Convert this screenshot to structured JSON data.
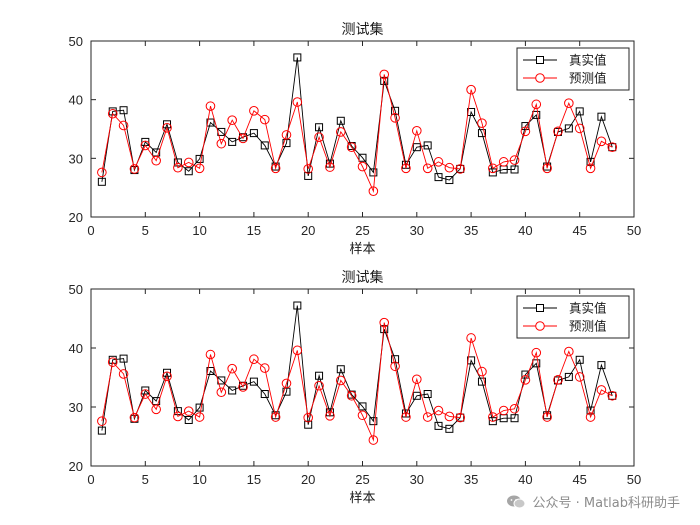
{
  "chart_data": [
    {
      "type": "line",
      "title": "测试集",
      "xlabel": "样本",
      "ylabel": "",
      "xlim": [
        0,
        50
      ],
      "ylim": [
        20,
        50
      ],
      "xticks": [
        0,
        5,
        10,
        15,
        20,
        25,
        30,
        35,
        40,
        45,
        50
      ],
      "yticks": [
        20,
        30,
        40,
        50
      ],
      "legend_position": "top-right",
      "x": [
        1,
        2,
        3,
        4,
        5,
        6,
        7,
        8,
        9,
        10,
        11,
        12,
        13,
        14,
        15,
        16,
        17,
        18,
        19,
        20,
        21,
        22,
        23,
        24,
        25,
        26,
        27,
        28,
        29,
        30,
        31,
        32,
        33,
        34,
        35,
        36,
        37,
        38,
        39,
        40,
        41,
        42,
        43,
        44,
        45,
        46,
        47,
        48
      ],
      "series": [
        {
          "name": "真实值",
          "color": "#000000",
          "marker": "square",
          "values": [
            26,
            38,
            38.2,
            28,
            32.8,
            31,
            35.8,
            29.3,
            27.8,
            29.9,
            36.1,
            34.5,
            32.8,
            33.6,
            34.3,
            32.2,
            28.6,
            32.6,
            47.2,
            27,
            35.3,
            29.1,
            36.4,
            32.1,
            30.1,
            27.6,
            43.2,
            38.1,
            28.9,
            31.9,
            32.2,
            26.8,
            26.3,
            28.2,
            37.9,
            34.3,
            27.6,
            28.1,
            28.1,
            35.5,
            37.4,
            28.6,
            34.5,
            35.1,
            38,
            29.4,
            37.1,
            31.9
          ]
        },
        {
          "name": "预测值",
          "color": "#ff0000",
          "marker": "circle",
          "values": [
            27.6,
            37.6,
            35.6,
            28.2,
            32.2,
            29.6,
            35.2,
            28.4,
            29.3,
            28.3,
            38.9,
            32.5,
            36.5,
            33.4,
            38.1,
            36.6,
            28.3,
            34,
            39.6,
            28.2,
            33.6,
            28.5,
            34.5,
            31.9,
            28.6,
            24.4,
            44.3,
            36.9,
            28.3,
            34.7,
            28.3,
            29.4,
            28.4,
            28.2,
            41.7,
            36,
            28.3,
            29.4,
            29.7,
            34.6,
            39.2,
            28.3,
            34.6,
            39.4,
            35.1,
            28.3,
            32.9,
            31.9
          ]
        }
      ]
    },
    {
      "type": "line",
      "title": "测试集",
      "xlabel": "样本",
      "ylabel": "",
      "xlim": [
        0,
        50
      ],
      "ylim": [
        20,
        50
      ],
      "xticks": [
        0,
        5,
        10,
        15,
        20,
        25,
        30,
        35,
        40,
        45,
        50
      ],
      "yticks": [
        20,
        30,
        40,
        50
      ],
      "legend_position": "top-right",
      "x": [
        1,
        2,
        3,
        4,
        5,
        6,
        7,
        8,
        9,
        10,
        11,
        12,
        13,
        14,
        15,
        16,
        17,
        18,
        19,
        20,
        21,
        22,
        23,
        24,
        25,
        26,
        27,
        28,
        29,
        30,
        31,
        32,
        33,
        34,
        35,
        36,
        37,
        38,
        39,
        40,
        41,
        42,
        43,
        44,
        45,
        46,
        47,
        48
      ],
      "series": [
        {
          "name": "真实值",
          "color": "#000000",
          "marker": "square",
          "values": [
            26,
            38,
            38.2,
            28,
            32.8,
            31,
            35.8,
            29.3,
            27.8,
            29.9,
            36.1,
            34.5,
            32.8,
            33.6,
            34.3,
            32.2,
            28.6,
            32.6,
            47.2,
            27,
            35.3,
            29.1,
            36.4,
            32.1,
            30.1,
            27.6,
            43.2,
            38.1,
            28.9,
            31.9,
            32.2,
            26.8,
            26.3,
            28.2,
            37.9,
            34.3,
            27.6,
            28.1,
            28.1,
            35.5,
            37.4,
            28.6,
            34.5,
            35.1,
            38,
            29.4,
            37.1,
            31.9
          ]
        },
        {
          "name": "预测值",
          "color": "#ff0000",
          "marker": "circle",
          "values": [
            27.6,
            37.6,
            35.6,
            28.2,
            32.2,
            29.6,
            35.2,
            28.4,
            29.3,
            28.3,
            38.9,
            32.5,
            36.5,
            33.4,
            38.1,
            36.6,
            28.3,
            34,
            39.6,
            28.2,
            33.6,
            28.5,
            34.5,
            31.9,
            28.6,
            24.4,
            44.3,
            36.9,
            28.3,
            34.7,
            28.3,
            29.4,
            28.4,
            28.2,
            41.7,
            36,
            28.3,
            29.4,
            29.7,
            34.6,
            39.2,
            28.3,
            34.6,
            39.4,
            35.1,
            28.3,
            32.9,
            31.9
          ]
        }
      ]
    }
  ],
  "watermark": {
    "text": "公众号 · Matlab科研助手",
    "icon": "wechat-icon"
  }
}
